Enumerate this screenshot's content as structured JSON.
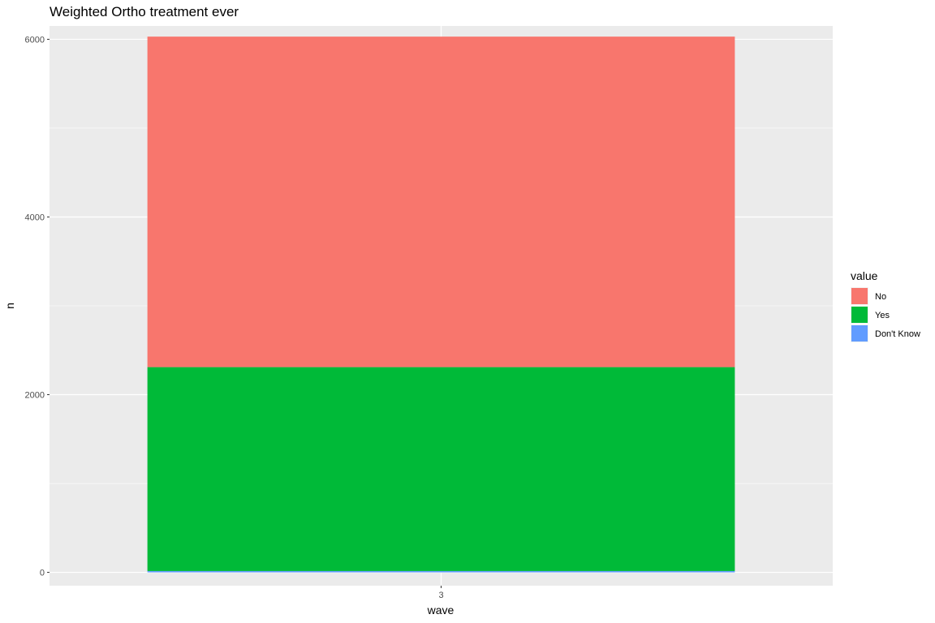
{
  "chart_data": {
    "type": "bar",
    "stacked": true,
    "title": "Weighted  Ortho treatment ever",
    "xlabel": "wave",
    "ylabel": "n",
    "categories": [
      "3"
    ],
    "ylim": [
      -150,
      6150
    ],
    "y_ticks": [
      0,
      2000,
      4000,
      6000
    ],
    "y_tick_labels": [
      "0",
      "2000",
      "4000",
      "6000"
    ],
    "grid": true,
    "legend_title": "value",
    "legend_position": "right",
    "series": [
      {
        "name": "No",
        "color": "#F8766D",
        "values": [
          3720
        ]
      },
      {
        "name": "Yes",
        "color": "#00BA38",
        "values": [
          2295
        ]
      },
      {
        "name": "Don't Know",
        "color": "#619CFF",
        "values": [
          15
        ]
      }
    ]
  }
}
